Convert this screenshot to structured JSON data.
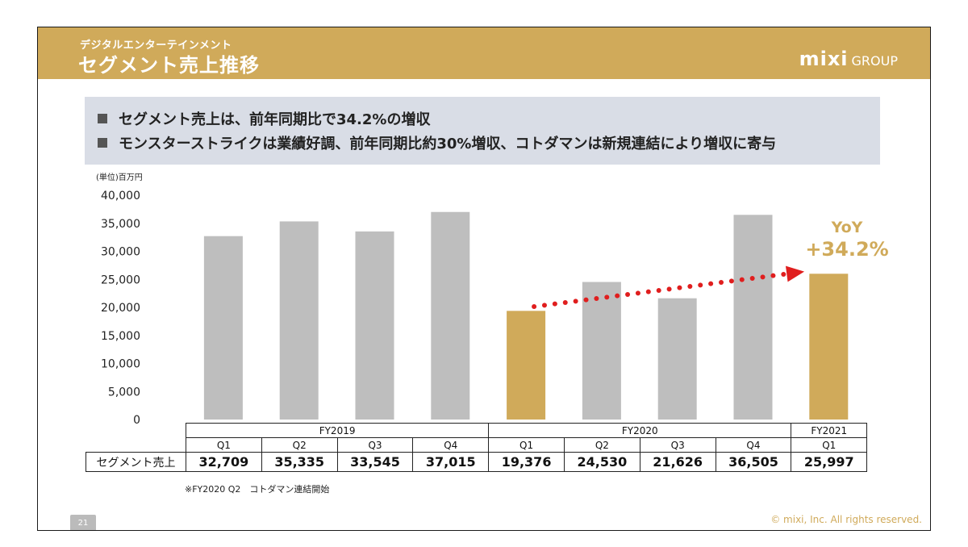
{
  "header": {
    "subtitle": "デジタルエンターテインメント",
    "title": "セグメント売上推移",
    "logo_main": "mixi",
    "logo_sub": "GROUP"
  },
  "bullets": [
    "セグメント売上は、前年同期比で34.2%の増収",
    "モンスターストライクは業績好調、前年同期比約30%増収、コトダマンは新規連結により増収に寄与"
  ],
  "unit_label": "(単位)百万円",
  "annotation": {
    "yoy_label": "YoY",
    "yoy_value": "+34.2%"
  },
  "table": {
    "years": [
      {
        "label": "FY2019",
        "span": 4
      },
      {
        "label": "FY2020",
        "span": 4
      },
      {
        "label": "FY2021",
        "span": 1
      }
    ],
    "row_label": "セグメント売上",
    "value_labels": [
      "32,709",
      "35,335",
      "33,545",
      "37,015",
      "19,376",
      "24,530",
      "21,626",
      "36,505",
      "25,997"
    ]
  },
  "note": "※FY2020 Q2　コトダマン連結開始",
  "footer": {
    "page_number": "21",
    "copyright": "© mixi, Inc. All rights reserved."
  },
  "chart_data": {
    "type": "bar",
    "categories": [
      "Q1",
      "Q2",
      "Q3",
      "Q4",
      "Q1",
      "Q2",
      "Q3",
      "Q4",
      "Q1"
    ],
    "groups": [
      "FY2019",
      "FY2019",
      "FY2019",
      "FY2019",
      "FY2020",
      "FY2020",
      "FY2020",
      "FY2020",
      "FY2021"
    ],
    "values": [
      32709,
      35335,
      33545,
      37015,
      19376,
      24530,
      21626,
      36505,
      25997
    ],
    "highlight": [
      false,
      false,
      false,
      false,
      true,
      false,
      false,
      false,
      true
    ],
    "yticks": [
      "0",
      "5,000",
      "10,000",
      "15,000",
      "20,000",
      "25,000",
      "30,000",
      "35,000",
      "40,000"
    ],
    "ylim": [
      0,
      40000
    ],
    "colors": {
      "default": "#bebebe",
      "highlight": "#d0aa5a",
      "arrow": "#e01e1e"
    },
    "grid": false,
    "legend": "none"
  }
}
